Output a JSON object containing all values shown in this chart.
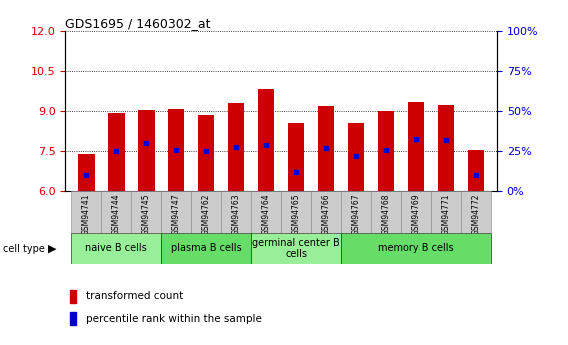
{
  "title": "GDS1695 / 1460302_at",
  "samples": [
    "GSM94741",
    "GSM94744",
    "GSM94745",
    "GSM94747",
    "GSM94762",
    "GSM94763",
    "GSM94764",
    "GSM94765",
    "GSM94766",
    "GSM94767",
    "GSM94768",
    "GSM94769",
    "GSM94771",
    "GSM94772"
  ],
  "transformed_counts": [
    7.4,
    8.95,
    9.05,
    9.1,
    8.85,
    9.3,
    9.85,
    8.55,
    9.2,
    8.55,
    9.0,
    9.35,
    9.25,
    7.55
  ],
  "percentile_pcts": [
    10,
    25,
    30,
    26,
    25,
    28,
    29,
    12,
    27,
    22,
    26,
    33,
    32,
    10
  ],
  "ylim_left": [
    6,
    12
  ],
  "ylim_right": [
    0,
    100
  ],
  "yticks_left": [
    6,
    7.5,
    9,
    10.5,
    12
  ],
  "yticks_right": [
    0,
    25,
    50,
    75,
    100
  ],
  "bar_color": "#cc0000",
  "dot_color": "#0000cc",
  "bar_width": 0.55,
  "left_tick_color": "#cc0000",
  "right_tick_color": "#0000cc",
  "legend_red": "transformed count",
  "legend_blue": "percentile rank within the sample",
  "cell_type_label": "cell type",
  "bg_color": "#ffffff",
  "group_boundaries": [
    0,
    3,
    6,
    9,
    14
  ],
  "group_labels": [
    "naive B cells",
    "plasma B cells",
    "germinal center B\ncells",
    "memory B cells"
  ],
  "group_color_light": "#99ee99",
  "group_color_dark": "#66dd66",
  "tick_bg_color": "#cccccc"
}
